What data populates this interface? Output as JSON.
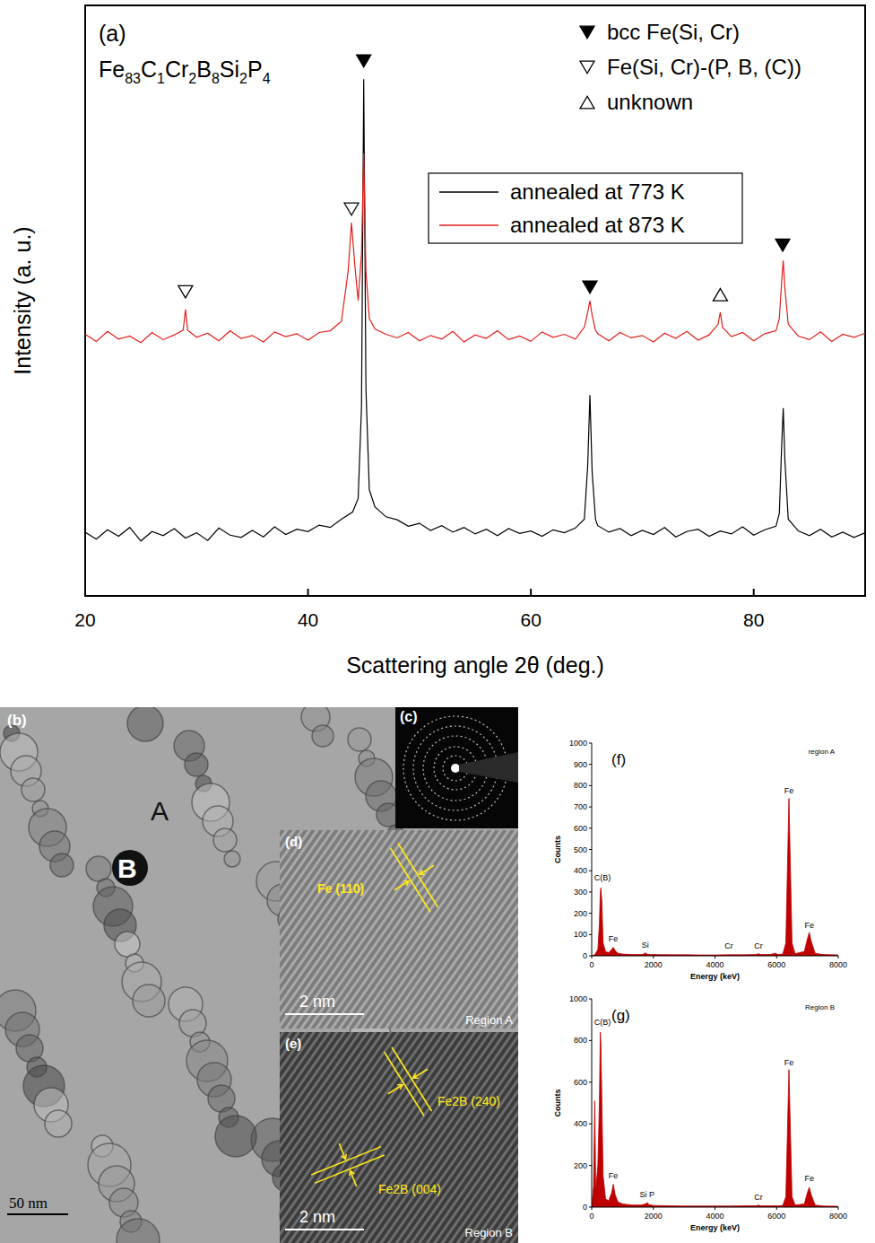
{
  "chart_data": [
    {
      "type": "line",
      "panel": "(a)",
      "subtitle": "Fe83C1Cr2B8Si2P4",
      "x_label": "Scattering angle 2θ (deg.)",
      "y_label": "Intensity (a. u.)",
      "xlim": [
        20,
        90
      ],
      "ylim": [
        0,
        100
      ],
      "xticks": [
        20,
        40,
        60,
        80
      ],
      "tick_labels": "x",
      "legend": "upper right",
      "series": [
        {
          "name": "annealed at 773 K",
          "color": "#000000",
          "x": [
            20,
            21,
            22,
            23,
            24,
            25,
            26,
            27,
            28,
            29,
            30,
            31,
            32,
            33,
            34,
            35,
            36,
            37,
            38,
            39,
            40,
            41,
            42,
            43,
            44,
            44.5,
            44.8,
            45,
            45.2,
            45.5,
            46,
            47,
            48,
            49,
            50,
            51,
            52,
            53,
            54,
            55,
            56,
            57,
            58,
            59,
            60,
            61,
            62,
            63,
            64,
            64.8,
            65.1,
            65.3,
            65.5,
            65.8,
            66,
            67,
            68,
            69,
            70,
            71,
            72,
            73,
            74,
            75,
            76,
            77,
            78,
            79,
            80,
            81,
            82,
            82.3,
            82.5,
            82.65,
            82.8,
            83.1,
            84,
            85,
            86,
            87,
            88,
            89,
            90
          ],
          "values": [
            10.8,
            9.6,
            11.2,
            10.1,
            11.6,
            9.3,
            10.9,
            10.2,
            11.4,
            9.8,
            10.7,
            9.4,
            11.5,
            10.3,
            9.9,
            11.1,
            10.0,
            11.7,
            10.4,
            11.3,
            10.9,
            12.0,
            11.6,
            13.0,
            14.2,
            16.5,
            32,
            87.5,
            35,
            18,
            15.1,
            13.4,
            12.9,
            11.8,
            12.3,
            11.1,
            11.9,
            10.8,
            11.6,
            10.5,
            11.3,
            10.2,
            11.4,
            10.6,
            11.0,
            10.1,
            11.2,
            10.7,
            11.5,
            13,
            22,
            34,
            21,
            13,
            11.9,
            10.8,
            11.4,
            10.2,
            11.1,
            10.4,
            11.6,
            10.0,
            10.9,
            11.3,
            10.1,
            11.0,
            10.5,
            11.7,
            10.3,
            11.2,
            11.8,
            14,
            25,
            31.8,
            23,
            13,
            11.0,
            10.2,
            11.3,
            10.0,
            10.8,
            9.9,
            10.7
          ]
        },
        {
          "name": "annealed at 873 K",
          "color": "#e0201b",
          "x": [
            20,
            21,
            22,
            23,
            24,
            25,
            26,
            27,
            28,
            28.8,
            29,
            29.2,
            30,
            31,
            32,
            33,
            34,
            35,
            36,
            37,
            38,
            39,
            40,
            41,
            42,
            43,
            43.6,
            43.9,
            44.2,
            44.5,
            44.8,
            45,
            45.2,
            45.5,
            46,
            47,
            48,
            49,
            50,
            51,
            52,
            53,
            54,
            55,
            56,
            57,
            58,
            59,
            60,
            61,
            62,
            63,
            64,
            64.8,
            65.1,
            65.3,
            65.5,
            65.8,
            66,
            67,
            68,
            69,
            70,
            71,
            72,
            73,
            74,
            75,
            76,
            76.8,
            77,
            77.2,
            78,
            79,
            80,
            81,
            82,
            82.3,
            82.5,
            82.65,
            82.8,
            83.1,
            84,
            85,
            86,
            87,
            88,
            89,
            90
          ],
          "values": [
            44.3,
            43.1,
            44.8,
            43.5,
            44.0,
            42.9,
            44.6,
            43.4,
            44.2,
            45,
            48.5,
            45,
            43.8,
            44.5,
            43.2,
            44.9,
            43.6,
            44.1,
            43.0,
            44.7,
            43.9,
            44.4,
            43.3,
            44.6,
            44.9,
            46.5,
            55,
            63.2,
            56,
            50,
            58,
            75,
            55,
            47,
            45.2,
            44.3,
            43.7,
            44.6,
            43.2,
            44.1,
            43.5,
            44.8,
            43.0,
            44.2,
            43.6,
            44.9,
            43.4,
            44.0,
            43.1,
            44.7,
            43.8,
            44.3,
            43.5,
            45.5,
            48,
            50,
            47.5,
            45,
            44.4,
            43.2,
            44.6,
            43.7,
            44.1,
            43.0,
            44.5,
            43.6,
            44.8,
            43.3,
            44.2,
            46,
            48,
            45.5,
            43.9,
            44.6,
            43.2,
            44.4,
            44.9,
            47,
            53,
            56.8,
            52,
            46,
            44.0,
            43.4,
            44.7,
            43.1,
            44.3,
            43.8,
            44.5
          ]
        }
      ],
      "marker_legend": [
        {
          "name": "bcc Fe(Si, Cr)",
          "marker": "triangle-down-filled"
        },
        {
          "name": "Fe(Si, Cr)-(P, B, (C))",
          "marker": "triangle-down-open"
        },
        {
          "name": "unknown",
          "marker": "triangle-up-open"
        }
      ],
      "peak_markers": [
        {
          "x": 45,
          "y": 90.6,
          "marker": "triangle-down-filled"
        },
        {
          "x": 65.3,
          "y": 52.3,
          "marker": "triangle-down-filled"
        },
        {
          "x": 82.6,
          "y": 59.4,
          "marker": "triangle-down-filled"
        },
        {
          "x": 29,
          "y": 51.5,
          "marker": "triangle-down-open"
        },
        {
          "x": 43.9,
          "y": 65.5,
          "marker": "triangle-down-open"
        },
        {
          "x": 77,
          "y": 51,
          "marker": "triangle-up-open"
        }
      ]
    },
    {
      "type": "area",
      "panel": "(f)",
      "title": "region A",
      "x_label": "Energy (keV)",
      "y_label": "Counts",
      "xlim": [
        0,
        8000
      ],
      "ylim": [
        0,
        1000
      ],
      "xticks": [
        0,
        2000,
        4000,
        6000,
        8000
      ],
      "yticks": [
        0,
        100,
        200,
        300,
        400,
        500,
        600,
        700,
        800,
        900,
        1000
      ],
      "color": "#c00000",
      "x": [
        0,
        100,
        200,
        250,
        280,
        300,
        330,
        370,
        450,
        550,
        650,
        700,
        760,
        850,
        1000,
        1300,
        1600,
        1700,
        1740,
        1780,
        1900,
        2500,
        3000,
        3500,
        4000,
        4500,
        5000,
        5350,
        5410,
        5470,
        5800,
        5950,
        6050,
        6200,
        6300,
        6350,
        6400,
        6450,
        6500,
        6600,
        6900,
        7000,
        7060,
        7120,
        7250,
        7500,
        8000
      ],
      "values": [
        0,
        5,
        30,
        150,
        300,
        320,
        250,
        60,
        20,
        15,
        30,
        40,
        25,
        12,
        8,
        6,
        6,
        8,
        15,
        8,
        6,
        5,
        5,
        4,
        4,
        5,
        5,
        6,
        10,
        6,
        6,
        12,
        6,
        8,
        60,
        400,
        740,
        400,
        60,
        10,
        20,
        80,
        110,
        70,
        12,
        6,
        4
      ],
      "annotations": [
        {
          "text": "C(B)",
          "x": 350,
          "y": 340
        },
        {
          "text": "Fe",
          "x": 700,
          "y": 55
        },
        {
          "text": "Si",
          "x": 1740,
          "y": 25
        },
        {
          "text": "Cr",
          "x": 4450,
          "y": 20
        },
        {
          "text": "Cr",
          "x": 5410,
          "y": 20
        },
        {
          "text": "Fe",
          "x": 6400,
          "y": 750
        },
        {
          "text": "Fe",
          "x": 7060,
          "y": 120
        }
      ]
    },
    {
      "type": "area",
      "panel": "(g)",
      "title": "Region B",
      "x_label": "Energy (keV)",
      "y_label": "Counts",
      "xlim": [
        0,
        8000
      ],
      "ylim": [
        0,
        1000
      ],
      "xticks": [
        0,
        2000,
        4000,
        6000,
        8000
      ],
      "yticks": [
        0,
        200,
        400,
        600,
        800,
        1000
      ],
      "color": "#c00000",
      "x": [
        0,
        60,
        100,
        130,
        200,
        250,
        280,
        300,
        330,
        370,
        450,
        550,
        650,
        700,
        760,
        850,
        1000,
        1300,
        1600,
        1750,
        1800,
        1850,
        2000,
        2500,
        3000,
        3500,
        4000,
        4500,
        5000,
        5350,
        5410,
        5470,
        5800,
        6050,
        6200,
        6300,
        6350,
        6400,
        6450,
        6500,
        6600,
        6900,
        7000,
        7060,
        7120,
        7250,
        7500,
        8000
      ],
      "values": [
        0,
        100,
        510,
        80,
        200,
        500,
        840,
        780,
        500,
        150,
        40,
        30,
        70,
        110,
        60,
        25,
        15,
        10,
        10,
        15,
        22,
        12,
        8,
        6,
        5,
        5,
        5,
        5,
        6,
        6,
        10,
        6,
        6,
        6,
        8,
        50,
        350,
        660,
        350,
        50,
        10,
        15,
        70,
        95,
        60,
        10,
        5,
        4
      ],
      "annotations": [
        {
          "text": "C(B)",
          "x": 350,
          "y": 860
        },
        {
          "text": "Fe",
          "x": 700,
          "y": 125
        },
        {
          "text": "Si P",
          "x": 1800,
          "y": 35
        },
        {
          "text": "Cr",
          "x": 5410,
          "y": 20
        },
        {
          "text": "Fe",
          "x": 6400,
          "y": 670
        },
        {
          "text": "Fe",
          "x": 7060,
          "y": 110
        }
      ]
    }
  ],
  "images": [
    {
      "panel": "(b)",
      "labels": [
        "A",
        "B"
      ],
      "scale_bar": "50 nm"
    },
    {
      "panel": "(c)"
    },
    {
      "panel": "(d)",
      "annotations": [
        "Fe (110)"
      ],
      "scale_bar": "2 nm",
      "region": "Region A"
    },
    {
      "panel": "(e)",
      "annotations": [
        "Fe2B (240)",
        "Fe2B (004)"
      ],
      "scale_bar": "2 nm",
      "region": "Region B"
    }
  ]
}
